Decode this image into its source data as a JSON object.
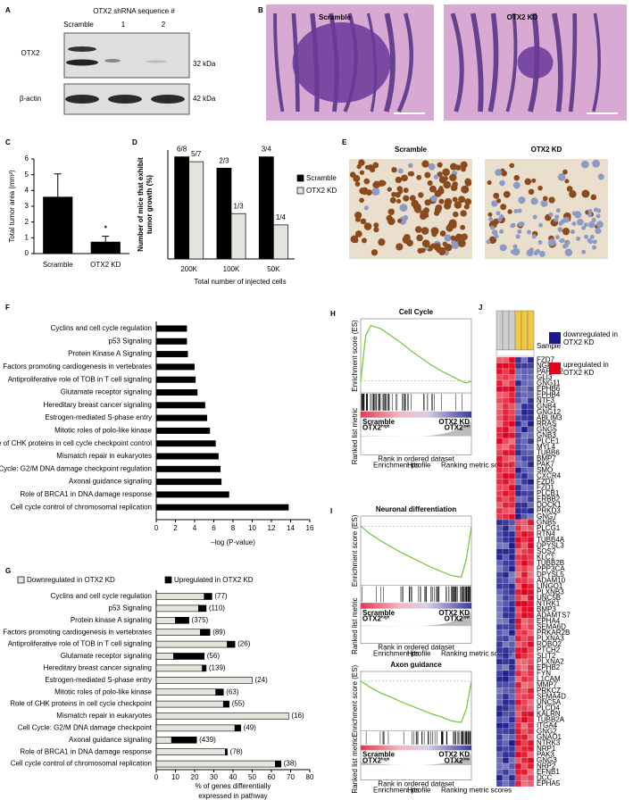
{
  "figure": {
    "A": {
      "panel": "A",
      "header": "OTX2 shRNA sequence #",
      "lanes": [
        "Scramble",
        "1",
        "2"
      ],
      "proteins": [
        "OTX2",
        "β-actin"
      ],
      "sizes": [
        "32 kDa",
        "42 kDa"
      ]
    },
    "B": {
      "panel": "B",
      "images": [
        "Scramble",
        "OTX2 KD"
      ]
    },
    "E": {
      "panel": "E",
      "images": [
        "Scramble",
        "OTX2 KD"
      ]
    }
  },
  "chart_data": [
    {
      "type": "bar",
      "panel": "C",
      "ylabel": "Total tumor area (mm²)",
      "categories": [
        "Scramble",
        "OTX2 KD"
      ],
      "values": [
        3.6,
        0.75
      ],
      "errors": [
        1.45,
        0.35
      ],
      "value_annotations": [
        null,
        "*"
      ],
      "color": "#000000",
      "ylim": [
        0,
        6
      ],
      "yticks": [
        0,
        1,
        2,
        3,
        4,
        5,
        6
      ]
    },
    {
      "type": "grouped_bar",
      "panel": "D",
      "ylabel": [
        "Number of mice that exhibit",
        "tumor growth (%)"
      ],
      "xlabel": "Total number of injected cells",
      "categories": [
        "200K",
        "100K",
        "50K"
      ],
      "ylim": [
        0,
        80
      ],
      "series": [
        {
          "name": "Scramble",
          "color": "#000000",
          "values": [
            75,
            66.7,
            75
          ],
          "value_labels": [
            "6/8",
            "2/3",
            "3/4"
          ]
        },
        {
          "name": "OTX2 KD",
          "color": "#e4e4dc",
          "values": [
            71.4,
            33.3,
            25
          ],
          "value_labels": [
            "5/7",
            "1/3",
            "1/4"
          ]
        }
      ]
    },
    {
      "type": "hbar",
      "panel": "F",
      "xlabel": "–log (P-value)",
      "color": "#000000",
      "xlim": [
        0,
        16
      ],
      "xticks": [
        0,
        2,
        4,
        6,
        8,
        10,
        12,
        14,
        16
      ],
      "categories": [
        "Cyclins and cell cycle regulation",
        "p53 Signaling",
        "Protein Kinase A Signaling",
        "Factors promoting cardiogenesis in vertebrates",
        "Antiproliferative role of TOB in T cell signaling",
        "Glutamate receptor signaling",
        "Hereditary breast cancer signaling",
        "Estrogen-mediated S-phase entry",
        "Mitotic roles of polo-like kinase",
        "Role of CHK proteins in cell cycle checkpoint control",
        "Mismatch repair in eukaryotes",
        "Cell Cycle: G2/M DNA damage checkpoint regulation",
        "Axonal guidance signaling",
        "Role of BRCA1 in DNA damage response",
        "Cell cycle control of chromosomal replication"
      ],
      "values": [
        3.2,
        3.2,
        3.3,
        4.0,
        4.1,
        4.3,
        5.1,
        5.3,
        5.6,
        6.2,
        6.5,
        6.7,
        6.8,
        7.6,
        13.8
      ]
    },
    {
      "type": "stacked_hbar",
      "panel": "G",
      "xlabel": [
        "% of genes differentially",
        "expressed in pathway"
      ],
      "xlim": [
        0,
        80
      ],
      "xticks": [
        0,
        10,
        20,
        30,
        40,
        50,
        60,
        70,
        80
      ],
      "categories": [
        "Cyclins and cell cycle regulation",
        "p53 Signaling",
        "Protein kinase A signaling",
        "Factors promoting cardiogenesis in vertebrates",
        "Antiproliferative role of TOB in T cell signaling",
        "Glutamate receptor signaling",
        "Hereditary breast cancer signaling",
        "Estrogen-mediated S-phase entry",
        "Mitotic roles of polo-like kinase",
        "Role of CHK proteins in cell cycle checkpoint",
        "Mismatch repair in eukaryotes",
        "Cell Cycle: G2/M DNA damage checkpoint",
        "Axonal guidance signaling",
        "Role of BRCA1 in DNA damage response",
        "Cell cycle control of chromosomal replication"
      ],
      "series": [
        {
          "name": "Downregulated in OTX2 KD",
          "color": "#e4e4dc",
          "values": [
            25,
            22,
            10,
            23,
            37,
            9,
            24,
            50,
            31,
            35,
            69,
            41,
            8,
            36,
            62
          ]
        },
        {
          "name": "Upregulated in OTX2 KD",
          "color": "#000000",
          "values": [
            4,
            4,
            7,
            5,
            4,
            16,
            2,
            0,
            4,
            3,
            0,
            3,
            13,
            1,
            3
          ]
        }
      ],
      "annotations": [
        "(77)",
        "(110)",
        "(375)",
        "(89)",
        "(26)",
        "(56)",
        "(139)",
        "(24)",
        "(63)",
        "(55)",
        "(16)",
        "(49)",
        "(439)",
        "(78)",
        "(38)"
      ]
    }
  ],
  "gsea": [
    {
      "type": "line",
      "panel": "H",
      "title": "Cell Cycle",
      "ylabel": "Enrichment score (ES)",
      "metric_label": "Ranked list metric",
      "xlabel": "Rank in ordered dataset",
      "left": {
        "name": "Scramble",
        "gene": "OTX2",
        "sup": "high"
      },
      "right": {
        "name": "OTX2 KD",
        "gene": "OTX2",
        "sup": "low"
      },
      "legend": [
        "Enrichment profile",
        "Hits",
        "Ranking metric scores"
      ],
      "color": "#7ac943",
      "xlim": [
        0,
        22000
      ],
      "ylim": [
        -0.1,
        0.6
      ],
      "x": [
        0,
        1000,
        2000,
        4000,
        6000,
        8000,
        10000,
        12000,
        14000,
        16000,
        18000,
        20000,
        21000,
        22000
      ],
      "es": [
        0,
        0.45,
        0.55,
        0.52,
        0.45,
        0.38,
        0.3,
        0.23,
        0.16,
        0.1,
        0.05,
        0,
        -0.02,
        0
      ]
    },
    {
      "type": "line",
      "panel": "I",
      "title": "Neuronal differentiation",
      "ylabel": "Enrichment score (ES)",
      "metric_label": "Ranked list metric",
      "xlabel": "Rank in ordered dataset",
      "left": {
        "name": "Scramble",
        "gene": "OTX2",
        "sup": "high"
      },
      "right": {
        "name": "OTX2 KD",
        "gene": "OTX2",
        "sup": "low"
      },
      "legend": [
        "Enrichment profile",
        "Hits",
        "Ranking metric scores"
      ],
      "color": "#7ac943",
      "xlim": [
        0,
        22000
      ],
      "ylim": [
        -0.7,
        0.1
      ],
      "x": [
        0,
        1000,
        2000,
        4000,
        6000,
        8000,
        10000,
        12000,
        14000,
        16000,
        18000,
        20000,
        21000,
        22000
      ],
      "es": [
        0,
        -0.05,
        -0.1,
        -0.18,
        -0.25,
        -0.32,
        -0.38,
        -0.44,
        -0.5,
        -0.55,
        -0.6,
        -0.62,
        -0.4,
        0
      ]
    },
    {
      "type": "line",
      "title": "Axon guidance",
      "ylabel": "Enrichment score (ES)",
      "metric_label": "Ranked list metric",
      "xlabel": "Rank in ordered dataset",
      "left": {
        "name": "Scramble",
        "gene": "OTX2",
        "sup": "high"
      },
      "right": {
        "name": "OTX2 KD",
        "gene": "OTX2",
        "sup": "low"
      },
      "legend": [
        "Enrichment profile",
        "Hits",
        "Ranking metric scores"
      ],
      "color": "#7ac943",
      "xlim": [
        0,
        22000
      ],
      "ylim": [
        -0.6,
        0.1
      ],
      "x": [
        0,
        1000,
        2000,
        4000,
        6000,
        8000,
        10000,
        12000,
        14000,
        16000,
        18000,
        20000,
        21000,
        22000
      ],
      "es": [
        0,
        -0.04,
        -0.08,
        -0.15,
        -0.2,
        -0.26,
        -0.31,
        -0.36,
        -0.41,
        -0.45,
        -0.5,
        -0.52,
        -0.35,
        0
      ]
    }
  ],
  "heatmap": {
    "panel": "J",
    "sample_label": "Sample",
    "legend": [
      {
        "label": [
          "downregulated in",
          "OTX2 KD"
        ],
        "color": "#1a1a8c"
      },
      {
        "label": [
          "upregulated in",
          "OTX2 KD"
        ],
        "color": "#e0001b"
      }
    ],
    "up_genes": [
      "FZD7",
      "NGF",
      "PAPPA2",
      "GLI3",
      "GNG11",
      "EPHB6",
      "EPHB4",
      "NTF3",
      "GNB4",
      "GNG12",
      "ABLIM3",
      "RRAS",
      "GNG5",
      "GNB3",
      "PLCE1",
      "MYL4",
      "TUBB6",
      "BMP7",
      "PAK7",
      "SMO",
      "CXCR4",
      "FZD5",
      "FZD1",
      "PLCB1",
      "ERBB2",
      "DOCK1",
      "PRKD3",
      "GNG7"
    ],
    "down_genes": [
      "GNB5",
      "PLCG1",
      "RTN4",
      "TUBB4A",
      "DPYSL3",
      "SOS2",
      "KLC1",
      "TUBB2B",
      "PPP3CA",
      "DPYSL5",
      "ADAM10",
      "LINGO1",
      "PLXNB3",
      "UNC5B",
      "NTRK1",
      "BMP3",
      "ADAMTS7",
      "EPHA4",
      "SEMA6D",
      "PRKAR2B",
      "PLXNA3",
      "ROBO2",
      "PTCH2",
      "SLIT2",
      "PLXNA2",
      "EPHB2",
      "FYN",
      "L1CAM",
      "MMP7",
      "PRKCZ",
      "SEMA4D",
      "UNC5A",
      "PLCD4",
      "KALRN",
      "TUBB2A",
      "ITGA4",
      "GNG2",
      "GNAO1",
      "NTRK3",
      "NRP1",
      "PAK3",
      "GNG3",
      "NRP2",
      "EFNB1",
      "DCC",
      "EPHA5"
    ]
  }
}
